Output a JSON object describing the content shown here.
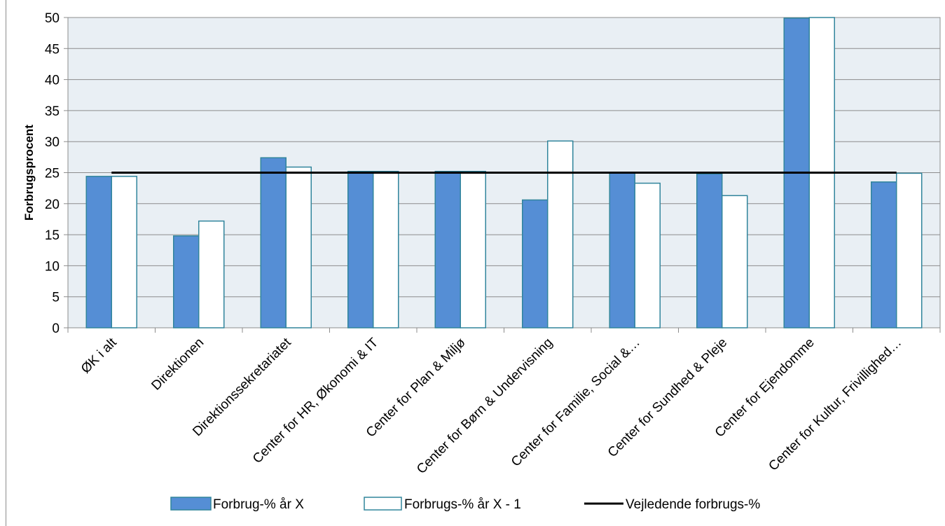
{
  "chart_data": {
    "type": "bar",
    "title": "",
    "xlabel": "",
    "ylabel": "Forbrugsprocent",
    "ylim": [
      0,
      50
    ],
    "yticks": [
      0,
      5,
      10,
      15,
      20,
      25,
      30,
      35,
      40,
      45,
      50
    ],
    "grid": true,
    "legend_position": "bottom",
    "categories": [
      "ØK i alt",
      "Direktionen",
      "Direktionssekretariatet",
      "Center for HR, Økonomi & IT",
      "Center for Plan & Miljø",
      "Center for Børn & Undervisning",
      "Center for Familie, Social &…",
      "Center for Sundhed & Pleje",
      "Center for Ejendomme",
      "Center for Kultur, Frivillighed…"
    ],
    "series": [
      {
        "name": "Forbrug-%  år X",
        "type": "bar",
        "color": "#558ED5",
        "values": [
          24.4,
          14.8,
          27.4,
          25.2,
          25.2,
          20.6,
          25.0,
          24.8,
          49.9,
          23.5
        ]
      },
      {
        "name": "Forbrugs-%  år X - 1",
        "type": "bar",
        "color": "#FFFFFF",
        "values": [
          24.4,
          17.2,
          25.9,
          25.2,
          25.2,
          30.1,
          23.3,
          21.3,
          50.0,
          24.9
        ]
      },
      {
        "name": "Vejledende forbrugs-%",
        "type": "line",
        "color": "#000000",
        "values": [
          25,
          25,
          25,
          25,
          25,
          25,
          25,
          25,
          25,
          25
        ]
      }
    ],
    "colors": {
      "plot_background": "#E9EFF4",
      "grid": "#8C8C8C",
      "bar_stroke": "#31859C"
    }
  }
}
